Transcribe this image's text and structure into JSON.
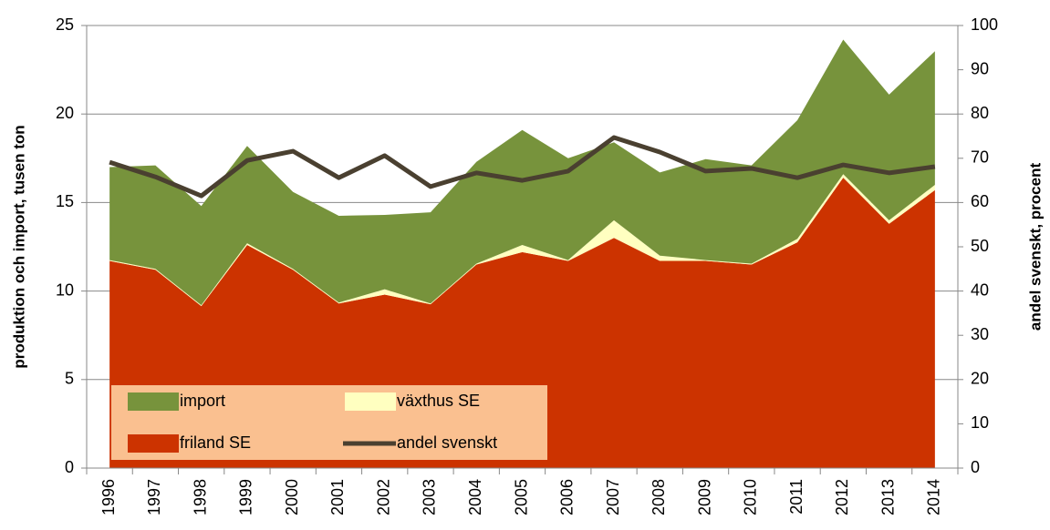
{
  "chart_data": {
    "type": "area",
    "y_label": "produktion och import, tusen ton",
    "y2_label": "andel svenskt, procent",
    "categories": [
      "1996",
      "1997",
      "1998",
      "1999",
      "2000",
      "2001",
      "2002",
      "2003",
      "2004",
      "2005",
      "2006",
      "2007",
      "2008",
      "2009",
      "2010",
      "2011",
      "2012",
      "2013",
      "2014"
    ],
    "series": [
      {
        "name": "import",
        "color": "#77933c",
        "values": [
          5.25,
          5.85,
          5.6,
          5.5,
          4.35,
          4.9,
          4.2,
          5.15,
          5.75,
          6.5,
          5.75,
          4.4,
          4.7,
          5.7,
          5.55,
          6.7,
          7.6,
          7.1,
          7.55
        ]
      },
      {
        "name": "växthus SE",
        "color": "#ffffc0",
        "values": [
          0.05,
          0.05,
          0.05,
          0.1,
          0.05,
          0.05,
          0.3,
          0.05,
          0.05,
          0.4,
          0.05,
          1.0,
          0.3,
          0.05,
          0.05,
          0.2,
          0.2,
          0.2,
          0.3
        ]
      },
      {
        "name": "friland SE",
        "color": "#cc3300",
        "values": [
          11.7,
          11.2,
          9.15,
          12.6,
          11.2,
          9.3,
          9.8,
          9.25,
          11.5,
          12.2,
          11.7,
          13.0,
          11.7,
          11.7,
          11.5,
          12.75,
          16.4,
          13.8,
          15.7
        ]
      },
      {
        "name": "andel svenskt",
        "color": "#4a4030",
        "axis": "y2",
        "values": [
          69.1,
          65.8,
          61.5,
          69.5,
          71.6,
          65.6,
          70.6,
          63.6,
          66.7,
          65.0,
          67.1,
          74.7,
          71.4,
          67.1,
          67.7,
          65.6,
          68.5,
          66.7,
          68.1
        ]
      }
    ],
    "ylim": [
      0,
      25
    ],
    "yticks": [
      0,
      5,
      10,
      15,
      20,
      25
    ],
    "y2lim": [
      0,
      100
    ],
    "y2ticks": [
      0,
      10,
      20,
      30,
      40,
      50,
      60,
      70,
      80,
      90,
      100
    ],
    "grid": true,
    "legend_color": "#fac090"
  }
}
